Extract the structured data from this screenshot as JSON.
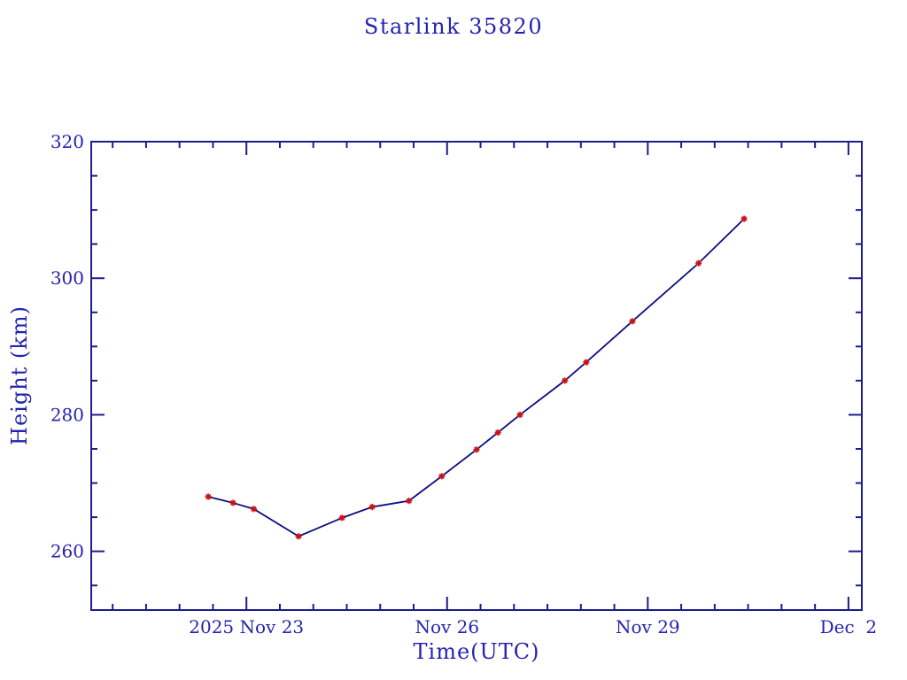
{
  "colors": {
    "background": "#ffffff",
    "text": "#2323b0",
    "axis": "#1c1c8e",
    "line": "#0d0d7e",
    "marker": "#cc1111"
  },
  "chart_data": {
    "type": "line",
    "title": "Starlink 35820",
    "xlabel": "Time(UTC)",
    "ylabel": "Height (km)",
    "grid": false,
    "legend": null,
    "x_axis": {
      "epoch_label": "2025 Nov 23",
      "units": "days after 2025 Nov 23 00:00 UTC",
      "lim": [
        -2.32,
        9.2
      ],
      "minor_step": 0.5,
      "major_ticks": [
        {
          "d": 0,
          "label": "2025 Nov 23"
        },
        {
          "d": 3,
          "label": "Nov 26"
        },
        {
          "d": 6,
          "label": "Nov 29"
        },
        {
          "d": 9,
          "label": "Dec  2"
        }
      ]
    },
    "y_axis": {
      "lim": [
        251.4,
        320
      ],
      "minor_step": 5,
      "major_ticks": [
        {
          "v": 260,
          "label": "260"
        },
        {
          "v": 280,
          "label": "280"
        },
        {
          "v": 300,
          "label": "300"
        },
        {
          "v": 320,
          "label": "320"
        }
      ]
    },
    "series": [
      {
        "name": "orbit-height",
        "marker": "asterisk",
        "points": [
          [
            -0.57,
            268.0
          ],
          [
            -0.2,
            267.1
          ],
          [
            0.11,
            266.2
          ],
          [
            0.78,
            262.2
          ],
          [
            1.43,
            264.9
          ],
          [
            1.88,
            266.5
          ],
          [
            2.43,
            267.4
          ],
          [
            2.92,
            271.0
          ],
          [
            3.44,
            274.9
          ],
          [
            3.76,
            277.4
          ],
          [
            4.09,
            280.0
          ],
          [
            4.76,
            285.0
          ],
          [
            5.08,
            287.7
          ],
          [
            5.77,
            293.7
          ],
          [
            6.76,
            302.2
          ],
          [
            7.44,
            308.7
          ]
        ]
      }
    ]
  }
}
